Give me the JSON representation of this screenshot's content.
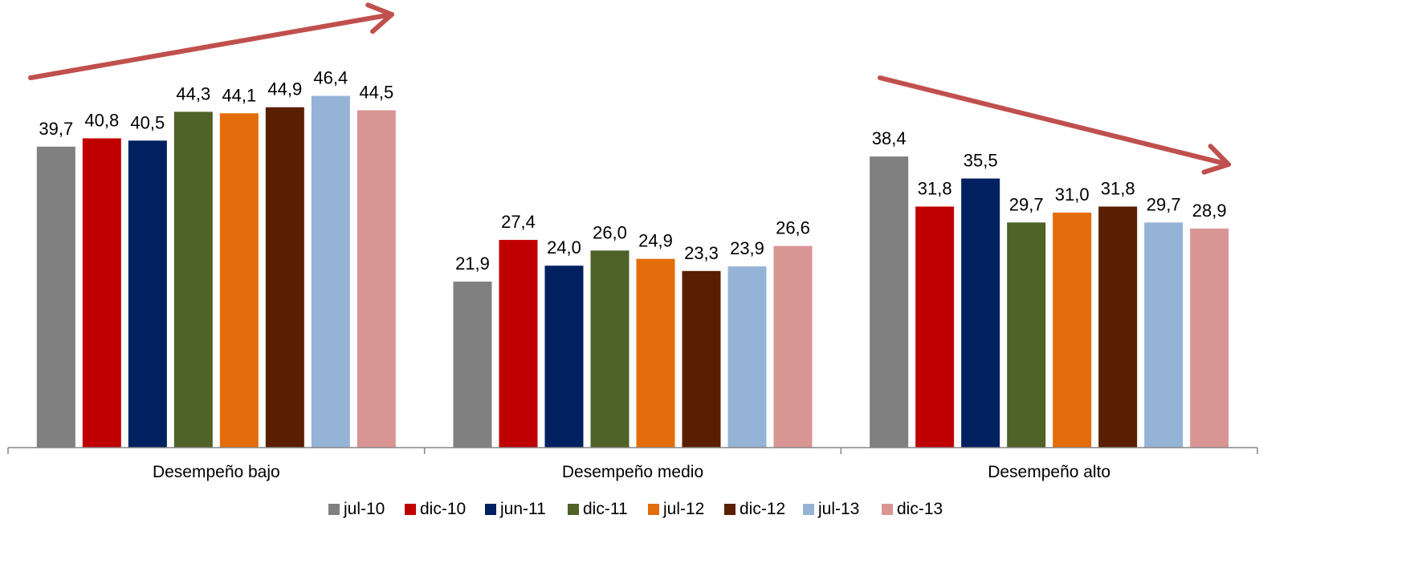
{
  "chart_data": {
    "type": "bar",
    "categories": [
      "Desempeño bajo",
      "Desempeño medio",
      "Desempeño alto"
    ],
    "series": [
      {
        "name": "jul-10",
        "color": "#808080",
        "values": [
          39.7,
          21.9,
          38.4
        ],
        "labels": [
          "39,7",
          "21,9",
          "38,4"
        ]
      },
      {
        "name": "dic-10",
        "color": "#C00000",
        "values": [
          40.8,
          27.4,
          31.8
        ],
        "labels": [
          "40,8",
          "27,4",
          "31,8"
        ]
      },
      {
        "name": "jun-11",
        "color": "#002060",
        "values": [
          40.5,
          24.0,
          35.5
        ],
        "labels": [
          "40,5",
          "24,0",
          "35,5"
        ]
      },
      {
        "name": "dic-11",
        "color": "#4F6228",
        "values": [
          44.3,
          26.0,
          29.7
        ],
        "labels": [
          "44,3",
          "26,0",
          "29,7"
        ]
      },
      {
        "name": "jul-12",
        "color": "#E46C0A",
        "values": [
          44.1,
          24.9,
          31.0
        ],
        "labels": [
          "44,1",
          "24,9",
          "31,0"
        ]
      },
      {
        "name": "dic-12",
        "color": "#5A1E00",
        "values": [
          44.9,
          23.3,
          31.8
        ],
        "labels": [
          "44,9",
          "23,3",
          "31,8"
        ]
      },
      {
        "name": "jul-13",
        "color": "#95B3D7",
        "values": [
          46.4,
          23.9,
          29.7
        ],
        "labels": [
          "46,4",
          "23,9",
          "29,7"
        ]
      },
      {
        "name": "dic-13",
        "color": "#D99594",
        "values": [
          44.5,
          26.6,
          28.9
        ],
        "labels": [
          "44,5",
          "26,6",
          "28,9"
        ]
      }
    ],
    "ylim": [
      0,
      50
    ],
    "grid": false,
    "legend": "bottom",
    "trend_arrows": [
      {
        "category": "Desempeño bajo",
        "direction": "up",
        "color": "#C0504D"
      },
      {
        "category": "Desempeño alto",
        "direction": "down",
        "color": "#C0504D"
      }
    ]
  }
}
